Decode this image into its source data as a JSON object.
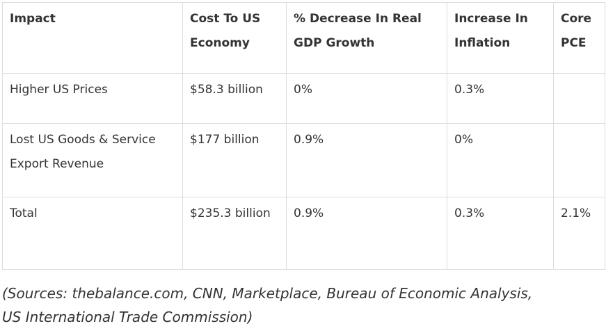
{
  "table": {
    "headers": [
      "Impact",
      "Cost To US Economy",
      "% Decrease In Real GDP Growth",
      "Increase In Inflation",
      "Core PCE"
    ],
    "rows": [
      [
        "Higher US Prices",
        "$58.3 billion",
        "0%",
        "0.3%",
        ""
      ],
      [
        "Lost US Goods & Service Export Revenue",
        "$177 billion",
        "0.9%",
        "0%",
        ""
      ],
      [
        "Total",
        "$235.3 billion",
        "0.9%",
        "0.3%",
        "2.1%"
      ]
    ]
  },
  "sources": {
    "line1": "(Sources: thebalance.com, CNN, Marketplace, Bureau of Economic Analysis,",
    "line2": "US International Trade Commission)"
  }
}
